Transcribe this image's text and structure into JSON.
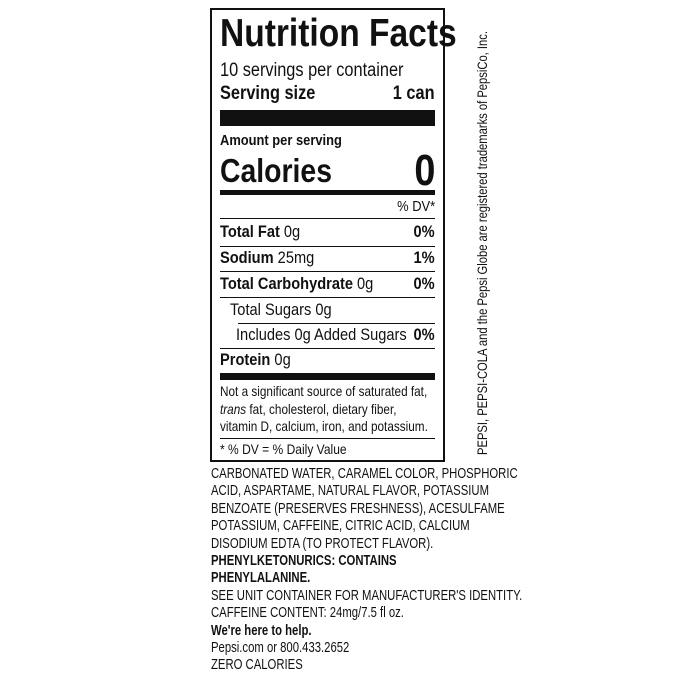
{
  "label": {
    "title": "Nutrition Facts",
    "servings": "10 servings per container",
    "serving_size_label": "Serving size",
    "serving_size_value": "1 can",
    "amount_per_serving": "Amount per serving",
    "calories_label": "Calories",
    "calories_value": "0",
    "dv_header": "% DV*",
    "nutrients": [
      {
        "name": "Total Fat",
        "amount": "0g",
        "dv": "0%"
      },
      {
        "name": "Sodium",
        "amount": "25mg",
        "dv": "1%"
      },
      {
        "name": "Total Carbohydrate",
        "amount": "0g",
        "dv": "0%"
      },
      {
        "name": "Total Sugars",
        "amount": "0g",
        "dv": ""
      },
      {
        "name": "Includes 0g Added Sugars",
        "amount": "",
        "dv": "0%"
      },
      {
        "name": "Protein",
        "amount": "0g",
        "dv": ""
      }
    ],
    "footnote_lines": [
      "Not a significant source of saturated fat,",
      "trans",
      "fat, cholesterol, dietary fiber,",
      "vitamin D, calcium, iron, and potassium."
    ],
    "dv_note": "* % DV = % Daily Value"
  },
  "ingredients": [
    "CARBONATED WATER, CARAMEL COLOR, PHOSPHORIC",
    "ACID, ASPARTAME, NATURAL FLAVOR, POTASSIUM",
    "BENZOATE (PRESERVES FRESHNESS), ACESULFAME",
    "POTASSIUM, CAFFEINE, CITRIC ACID, CALCIUM",
    "DISODIUM EDTA (TO PROTECT FLAVOR).",
    "PHENYLKETONURICS: CONTAINS",
    "PHENYLALANINE.",
    "SEE UNIT CONTAINER FOR MANUFACTURER'S IDENTITY.",
    "CAFFEINE CONTENT: 24mg/7.5 fl oz.",
    "We're here to help.",
    "Pepsi.com or 800.433.2652",
    "ZERO CALORIES"
  ],
  "trademark": "PEPSI, PEPSI-COLA and the Pepsi Globe are registered trademarks of PepsiCo, Inc."
}
